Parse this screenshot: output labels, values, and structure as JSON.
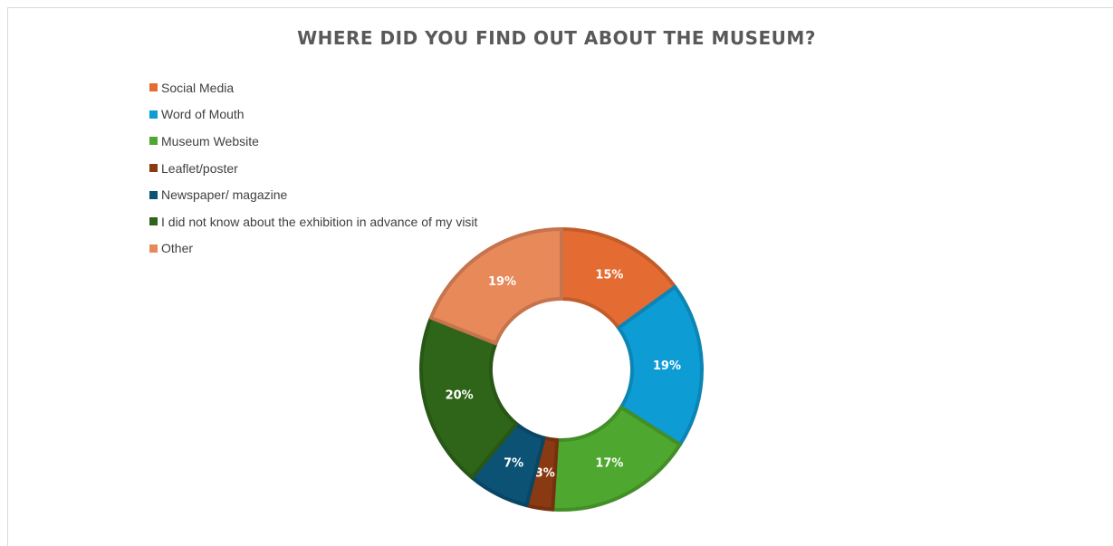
{
  "chart_data": {
    "type": "pie",
    "title": "WHERE DID YOU FIND OUT ABOUT THE MUSEUM?",
    "legend_position": "top-left",
    "slices": [
      {
        "label": "Social Media",
        "value": 15,
        "display": "15%",
        "color": "#E46C32"
      },
      {
        "label": "Word of Mouth",
        "value": 19,
        "display": "19%",
        "color": "#0E9CD5"
      },
      {
        "label": "Museum Website",
        "value": 17,
        "display": "17%",
        "color": "#4EA72E"
      },
      {
        "label": "Leaflet/poster",
        "value": 3,
        "display": "3%",
        "color": "#8A3A12"
      },
      {
        "label": "Newspaper/ magazine",
        "value": 7,
        "display": "7%",
        "color": "#0B5275"
      },
      {
        "label": "I did not know about the exhibition in advance of my visit",
        "value": 20,
        "display": "20%",
        "color": "#2E6519"
      },
      {
        "label": "Other",
        "value": 19,
        "display": "19%",
        "color": "#E8895A"
      }
    ]
  }
}
